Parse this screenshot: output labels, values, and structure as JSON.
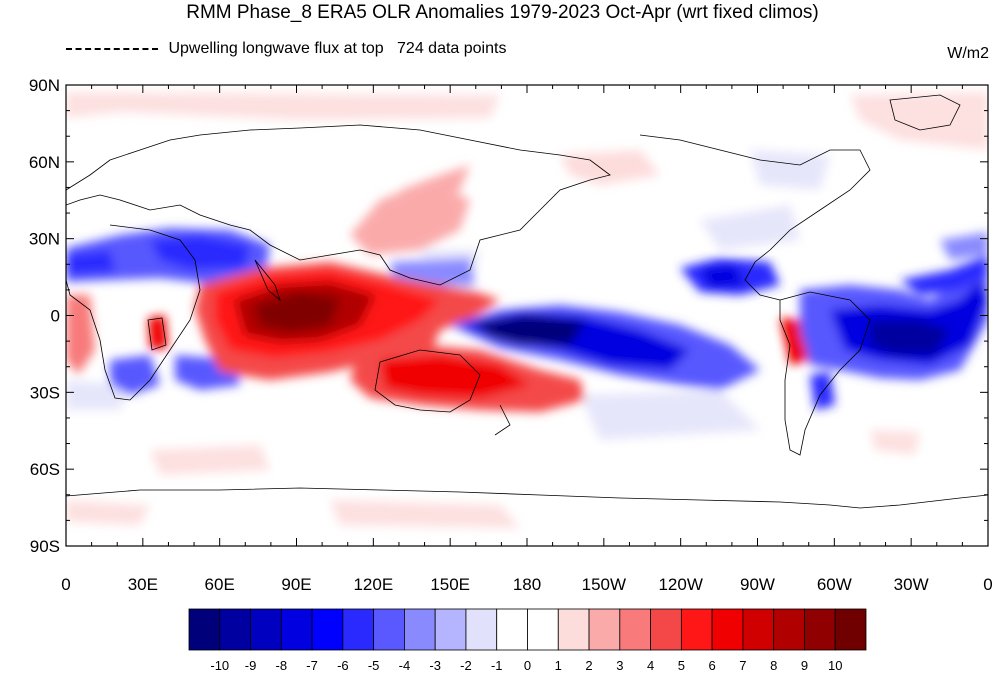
{
  "title": "RMM Phase_8 ERA5 OLR Anomalies 1979-2023 Oct-Apr (wrt fixed climos)",
  "legend_line": {
    "label": "Upwelling longwave flux at top",
    "count": "724 data points"
  },
  "units": "W/m2",
  "lat_labels": [
    "90N",
    "60N",
    "30N",
    "0",
    "30S",
    "60S",
    "90S"
  ],
  "lon_labels": [
    "0",
    "30E",
    "60E",
    "90E",
    "120E",
    "150E",
    "180",
    "150W",
    "120W",
    "90W",
    "60W",
    "30W",
    "0"
  ],
  "colorbar": {
    "labels": [
      "-10",
      "-9",
      "-8",
      "-7",
      "-6",
      "-5",
      "-4",
      "-3",
      "-2",
      "-1",
      "0",
      "1",
      "2",
      "3",
      "4",
      "5",
      "6",
      "7",
      "8",
      "9",
      "10"
    ],
    "colors": [
      "#00007a",
      "#0000a0",
      "#0000c0",
      "#0000e0",
      "#0000ff",
      "#2a2aff",
      "#5959ff",
      "#8a8aff",
      "#b4b4ff",
      "#e1e1fb",
      "#ffffff",
      "#ffffff",
      "#fddcdc",
      "#fbaaaa",
      "#f87a7a",
      "#f44848",
      "#ff1616",
      "#f00000",
      "#d00000",
      "#b00000",
      "#900000",
      "#700000"
    ]
  }
}
